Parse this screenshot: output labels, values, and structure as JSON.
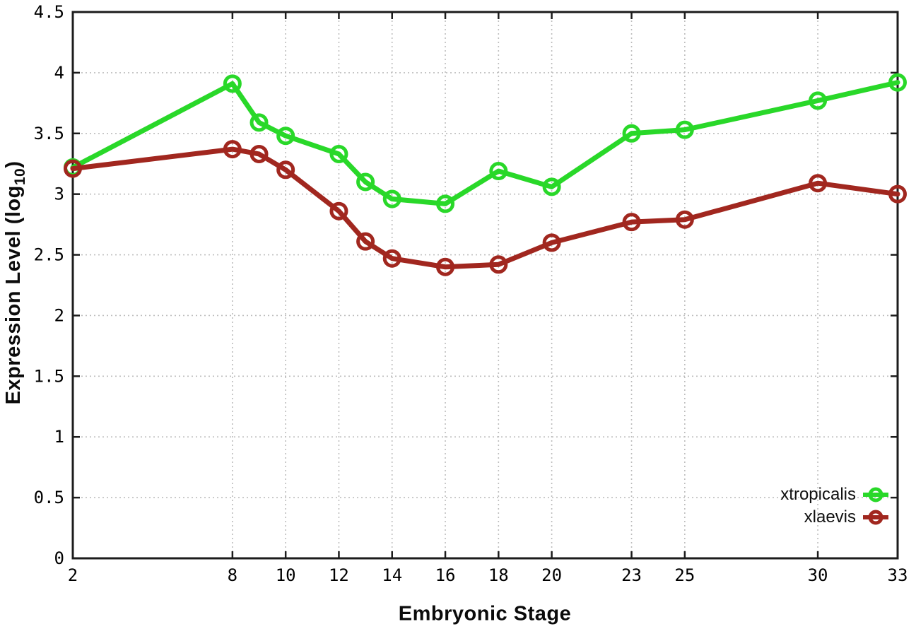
{
  "chart_data": {
    "type": "line",
    "title": "",
    "xlabel": "Embryonic Stage",
    "ylabel": {
      "prefix": "Expression Level (log",
      "sub": "10",
      "suffix": ")"
    },
    "xlim": [
      2,
      33
    ],
    "ylim": [
      0,
      4.5
    ],
    "grid": true,
    "legend_position": "bottom-right",
    "marker": "open-circle",
    "axis_color": "#1c1c1c",
    "grid_color": "#bdbdbd",
    "tick_label_color": "#000000",
    "x": [
      2,
      8,
      9,
      10,
      12,
      13,
      14,
      16,
      18,
      20,
      23,
      25,
      30,
      33
    ],
    "series": [
      {
        "name": "xtropicalis",
        "color": "#29d829",
        "values": [
          3.22,
          3.91,
          3.59,
          3.48,
          3.33,
          3.1,
          2.96,
          2.92,
          3.19,
          3.06,
          3.5,
          3.53,
          3.77,
          3.92
        ]
      },
      {
        "name": "xlaevis",
        "color": "#a1271f",
        "values": [
          3.21,
          3.37,
          3.33,
          3.2,
          2.86,
          2.61,
          2.47,
          2.4,
          2.42,
          2.6,
          2.77,
          2.79,
          3.09,
          3.0
        ]
      }
    ],
    "x_ticks": [
      {
        "v": 2,
        "label": "2"
      },
      {
        "v": 8,
        "label": "8"
      },
      {
        "v": 10,
        "label": "10"
      },
      {
        "v": 12,
        "label": "12"
      },
      {
        "v": 14,
        "label": "14"
      },
      {
        "v": 16,
        "label": "16"
      },
      {
        "v": 18,
        "label": "18"
      },
      {
        "v": 20,
        "label": "20"
      },
      {
        "v": 23,
        "label": "23"
      },
      {
        "v": 25,
        "label": "25"
      },
      {
        "v": 30,
        "label": "30"
      },
      {
        "v": 33,
        "label": "33"
      }
    ],
    "y_ticks": [
      {
        "v": 0,
        "label": "0"
      },
      {
        "v": 0.5,
        "label": "0.5"
      },
      {
        "v": 1,
        "label": "1"
      },
      {
        "v": 1.5,
        "label": "1.5"
      },
      {
        "v": 2,
        "label": "2"
      },
      {
        "v": 2.5,
        "label": "2.5"
      },
      {
        "v": 3,
        "label": "3"
      },
      {
        "v": 3.5,
        "label": "3.5"
      },
      {
        "v": 4,
        "label": "4"
      },
      {
        "v": 4.5,
        "label": "4.5"
      }
    ]
  }
}
